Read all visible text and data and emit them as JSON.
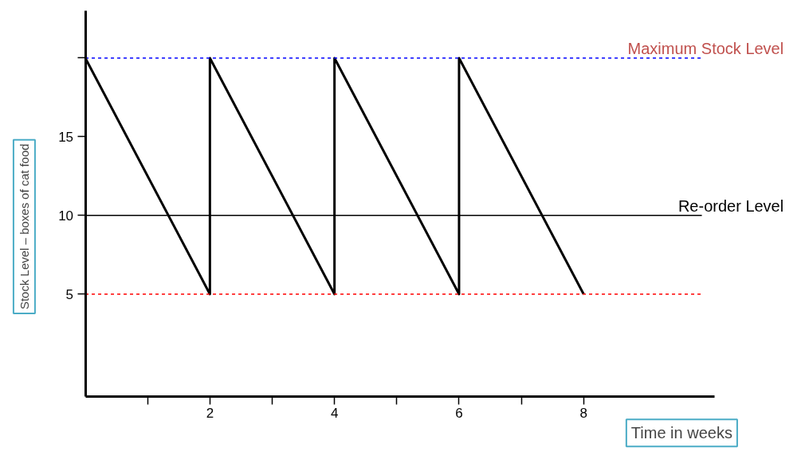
{
  "chart_data": {
    "type": "line",
    "xlabel": "Time in weeks",
    "ylabel": "Stock Level – boxes of cat food",
    "x": [
      0,
      2,
      2,
      4,
      4,
      6,
      6,
      8
    ],
    "series": [
      {
        "color": "#000000",
        "values": [
          20,
          5,
          20,
          5,
          20,
          5,
          20,
          5
        ]
      }
    ],
    "xlim": [
      0,
      10.1
    ],
    "ylim": [
      -1.5,
      23
    ],
    "xticks": [
      {
        "value": 1,
        "label": null
      },
      2,
      {
        "value": 3,
        "label": null
      },
      4,
      {
        "value": 5,
        "label": null
      },
      6,
      {
        "value": 7,
        "label": null
      },
      8
    ],
    "yticks": [
      5,
      10,
      15,
      {
        "value": 20,
        "label": null
      }
    ],
    "ref_lines": [
      {
        "axis": "y",
        "value": 20,
        "label": "Maximum Stock Level",
        "color": "#0000ff",
        "line_style": "dashed"
      },
      {
        "axis": "y",
        "value": 10,
        "label": "Re-order Level",
        "color": "#000000",
        "line_style": "solid"
      },
      {
        "axis": "y",
        "value": 5,
        "color": "#ff0000",
        "line_style": "dashed"
      }
    ],
    "grid": false,
    "marker": "none",
    "line_style": "solid"
  }
}
